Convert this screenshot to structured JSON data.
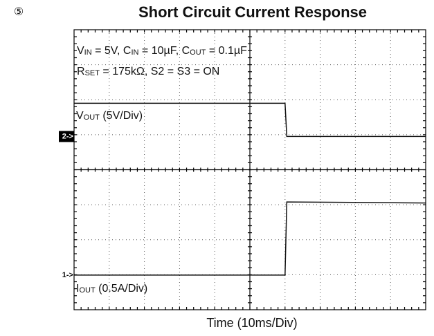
{
  "chart_data": {
    "type": "line",
    "number": "⑤",
    "title": "Short Circuit Current Response",
    "x_label": "Time (10ms/Div)",
    "conditions": [
      [
        "V",
        "IN",
        " = 5V, C",
        "IN",
        " = 10µF, C",
        "OUT",
        " = 0.1µF"
      ],
      [
        "R",
        "SET",
        " = 175kΩ,  S2 = S3 = ON"
      ]
    ],
    "xlim": [
      0,
      10
    ],
    "ylim": [
      0,
      8
    ],
    "x": [
      0,
      6.0,
      6.05,
      10
    ],
    "series": [
      {
        "label": [
          "V",
          "OUT",
          " (5V/Div)"
        ],
        "marker": "2->",
        "color": "#111",
        "values": [
          5.9,
          5.9,
          4.95,
          4.95
        ]
      },
      {
        "label": [
          "I",
          "OUT",
          " (0.5A/Div)"
        ],
        "marker": "1->",
        "color": "#111",
        "values": [
          0.99,
          0.99,
          3.08,
          3.05
        ]
      }
    ]
  }
}
